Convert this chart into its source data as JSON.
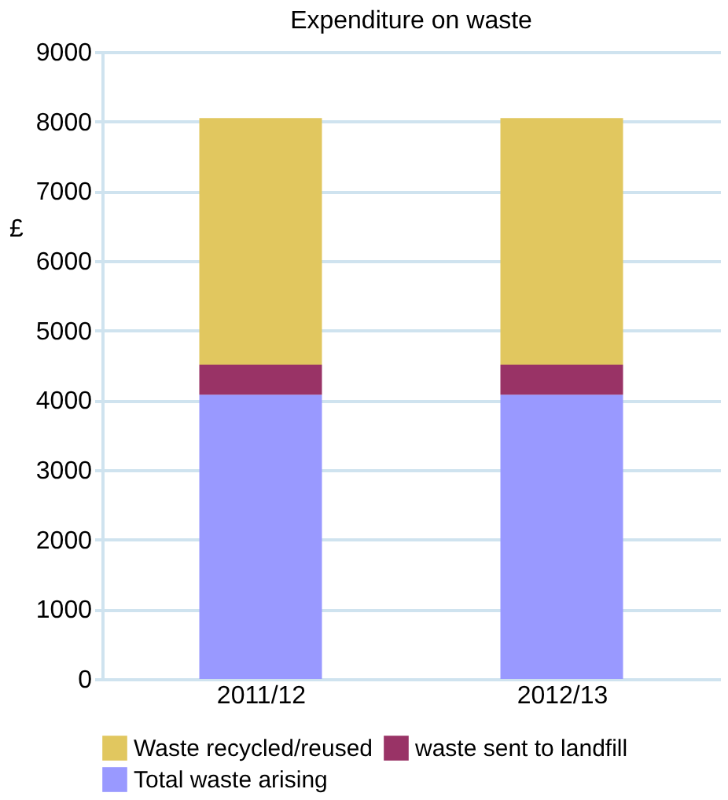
{
  "chart_data": {
    "type": "bar",
    "title": "Expenditure on waste",
    "ylabel": "£",
    "categories": [
      "2011/12",
      "2012/13"
    ],
    "stacked": true,
    "series": [
      {
        "name": "Total waste arising",
        "color": "#9999ff",
        "values": [
          4080,
          4080
        ]
      },
      {
        "name": "waste sent to landfill",
        "color": "#993366",
        "values": [
          430,
          430
        ]
      },
      {
        "name": "Waste recycled/reused",
        "color": "#e1c75f",
        "values": [
          3540,
          3540
        ]
      }
    ],
    "ylim": [
      0,
      9000
    ],
    "yticks": [
      0,
      1000,
      2000,
      3000,
      4000,
      5000,
      6000,
      7000,
      8000,
      9000
    ],
    "grid": "y",
    "legend": "bottom"
  }
}
